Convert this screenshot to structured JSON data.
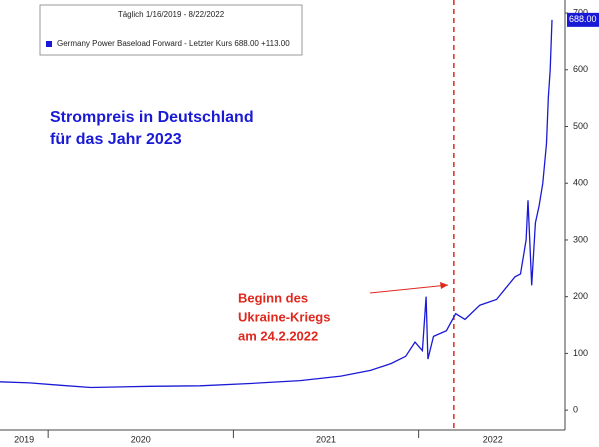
{
  "chart_data": {
    "type": "line",
    "title_lines": [
      "Strompreis in Deutschland",
      "für das Jahr 2023"
    ],
    "legend_header": "Täglich 1/16/2019 - 8/22/2022",
    "legend_entry": "Germany Power Baseload Forward - Letzter Kurs  688.00  +113.00",
    "annotation_lines": [
      "Beginn des",
      "Ukraine-Kriegs",
      "am 24.2.2022"
    ],
    "event_x": 2022.19,
    "event_color": "#e0281e",
    "x_labels": [
      {
        "value": 2019.87,
        "label": "2019"
      },
      {
        "value": 2020.5,
        "label": "2020"
      },
      {
        "value": 2021.5,
        "label": "2021"
      },
      {
        "value": 2022.4,
        "label": "2022"
      }
    ],
    "xticks": [
      2020,
      2021,
      2022
    ],
    "xlim": [
      2019.74,
      2022.79
    ],
    "ylim": [
      -35,
      723
    ],
    "yticks": [
      0,
      100,
      200,
      300,
      400,
      500,
      600,
      700
    ],
    "last_label": {
      "value": 688,
      "label": "688.00"
    },
    "series": [
      {
        "name": "Germany Power Baseload Forward",
        "color": "#1a1ad6",
        "x": [
          2019.74,
          2019.9,
          2020.06,
          2020.23,
          2020.55,
          2020.82,
          2021.09,
          2021.36,
          2021.58,
          2021.74,
          2021.85,
          2021.93,
          2021.98,
          2022.02,
          2022.04,
          2022.05,
          2022.08,
          2022.15,
          2022.2,
          2022.25,
          2022.33,
          2022.42,
          2022.47,
          2022.52,
          2022.55,
          2022.58,
          2022.59,
          2022.61,
          2022.63,
          2022.65,
          2022.67,
          2022.69,
          2022.7,
          2022.71,
          2022.72
        ],
        "values": [
          50,
          48,
          44,
          40,
          42,
          43,
          47,
          52,
          60,
          70,
          82,
          95,
          120,
          105,
          200,
          90,
          130,
          140,
          170,
          160,
          185,
          195,
          215,
          235,
          240,
          300,
          370,
          220,
          330,
          360,
          400,
          470,
          550,
          600,
          688
        ]
      }
    ]
  }
}
